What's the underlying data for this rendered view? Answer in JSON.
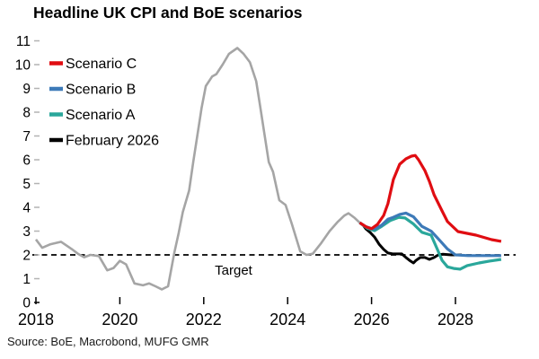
{
  "title": "Headline UK CPI and BoE scenarios",
  "source": "Source: BoE, Macrobond, MUFG GMR",
  "target_label": "Target",
  "colors": {
    "history": "#a5a5a5",
    "scenario_c": "#e00d12",
    "scenario_b": "#3d7ab8",
    "scenario_a": "#2aa79b",
    "february_2026": "#000000",
    "target_line": "#000000",
    "tick_minor": "#b3b3b3",
    "tick_major": "#000000"
  },
  "chart_data": {
    "type": "line",
    "title": "Headline UK CPI and BoE scenarios",
    "xlabel": "",
    "ylabel": "",
    "xlim": [
      2017.9,
      2029.45
    ],
    "ylim": [
      0,
      11
    ],
    "x_ticks": [
      2018,
      2020,
      2022,
      2024,
      2026,
      2028
    ],
    "y_ticks": [
      0,
      1,
      2,
      3,
      4,
      5,
      6,
      7,
      8,
      9,
      10,
      11
    ],
    "grid": false,
    "legend_position": "top-left",
    "target_line": {
      "value": 2,
      "style": "dashed",
      "label": "Target"
    },
    "legend_items": [
      {
        "label": "Scenario C",
        "color": "#e00d12"
      },
      {
        "label": "Scenario B",
        "color": "#3d7ab8"
      },
      {
        "label": "Scenario A",
        "color": "#2aa79b"
      },
      {
        "label": "February 2026",
        "color": "#000000"
      }
    ],
    "series": [
      {
        "name": "Headline CPI history",
        "color": "#a5a5a5",
        "width": 2.6,
        "points": [
          [
            2018.0,
            2.65
          ],
          [
            2018.15,
            2.3
          ],
          [
            2018.35,
            2.45
          ],
          [
            2018.6,
            2.55
          ],
          [
            2018.85,
            2.25
          ],
          [
            2019.0,
            2.05
          ],
          [
            2019.15,
            1.9
          ],
          [
            2019.3,
            2.0
          ],
          [
            2019.5,
            1.95
          ],
          [
            2019.7,
            1.35
          ],
          [
            2019.85,
            1.45
          ],
          [
            2020.0,
            1.75
          ],
          [
            2020.15,
            1.6
          ],
          [
            2020.35,
            0.8
          ],
          [
            2020.55,
            0.72
          ],
          [
            2020.7,
            0.8
          ],
          [
            2020.85,
            0.68
          ],
          [
            2021.0,
            0.55
          ],
          [
            2021.15,
            0.68
          ],
          [
            2021.3,
            2.1
          ],
          [
            2021.4,
            2.9
          ],
          [
            2021.5,
            3.8
          ],
          [
            2021.65,
            4.7
          ],
          [
            2021.75,
            5.9
          ],
          [
            2021.85,
            7.05
          ],
          [
            2021.95,
            8.2
          ],
          [
            2022.05,
            9.1
          ],
          [
            2022.2,
            9.5
          ],
          [
            2022.3,
            9.6
          ],
          [
            2022.45,
            10.0
          ],
          [
            2022.6,
            10.45
          ],
          [
            2022.8,
            10.7
          ],
          [
            2022.95,
            10.45
          ],
          [
            2023.1,
            10.1
          ],
          [
            2023.25,
            9.3
          ],
          [
            2023.35,
            8.2
          ],
          [
            2023.45,
            7.05
          ],
          [
            2023.55,
            5.9
          ],
          [
            2023.65,
            5.5
          ],
          [
            2023.8,
            4.3
          ],
          [
            2023.95,
            4.1
          ],
          [
            2024.1,
            3.3
          ],
          [
            2024.3,
            2.15
          ],
          [
            2024.45,
            2.0
          ],
          [
            2024.6,
            2.05
          ],
          [
            2024.8,
            2.5
          ],
          [
            2025.0,
            3.0
          ],
          [
            2025.2,
            3.4
          ],
          [
            2025.35,
            3.65
          ],
          [
            2025.45,
            3.75
          ],
          [
            2025.6,
            3.55
          ],
          [
            2025.72,
            3.35
          ]
        ]
      },
      {
        "name": "February 2026",
        "color": "#000000",
        "width": 3,
        "points": [
          [
            2025.72,
            3.35
          ],
          [
            2025.8,
            3.25
          ],
          [
            2025.86,
            3.1
          ],
          [
            2025.97,
            2.94
          ],
          [
            2026.07,
            2.75
          ],
          [
            2026.18,
            2.45
          ],
          [
            2026.29,
            2.23
          ],
          [
            2026.39,
            2.08
          ],
          [
            2026.5,
            2.04
          ],
          [
            2026.61,
            2.04
          ],
          [
            2026.72,
            2.04
          ],
          [
            2026.82,
            1.89
          ],
          [
            2026.93,
            1.74
          ],
          [
            2027.0,
            1.66
          ],
          [
            2027.06,
            1.77
          ],
          [
            2027.16,
            1.89
          ],
          [
            2027.27,
            1.89
          ],
          [
            2027.38,
            1.81
          ],
          [
            2027.49,
            1.89
          ],
          [
            2027.59,
            2.0
          ],
          [
            2027.7,
            2.03
          ],
          [
            2027.9,
            2.0
          ],
          [
            2028.15,
            2.0
          ]
        ]
      },
      {
        "name": "Scenario A",
        "color": "#2aa79b",
        "width": 3.2,
        "points": [
          [
            2025.72,
            3.35
          ],
          [
            2025.9,
            3.12
          ],
          [
            2026.07,
            3.02
          ],
          [
            2026.24,
            3.2
          ],
          [
            2026.45,
            3.45
          ],
          [
            2026.65,
            3.58
          ],
          [
            2026.8,
            3.55
          ],
          [
            2027.0,
            3.3
          ],
          [
            2027.2,
            2.95
          ],
          [
            2027.42,
            2.83
          ],
          [
            2027.57,
            2.23
          ],
          [
            2027.68,
            1.77
          ],
          [
            2027.81,
            1.5
          ],
          [
            2027.96,
            1.43
          ],
          [
            2028.11,
            1.4
          ],
          [
            2028.28,
            1.55
          ],
          [
            2028.56,
            1.66
          ],
          [
            2028.81,
            1.74
          ],
          [
            2029.09,
            1.81
          ]
        ]
      },
      {
        "name": "Scenario B",
        "color": "#3d7ab8",
        "width": 3.2,
        "points": [
          [
            2025.72,
            3.35
          ],
          [
            2025.85,
            3.2
          ],
          [
            2025.97,
            3.12
          ],
          [
            2026.07,
            3.09
          ],
          [
            2026.24,
            3.25
          ],
          [
            2026.39,
            3.5
          ],
          [
            2026.52,
            3.58
          ],
          [
            2026.67,
            3.7
          ],
          [
            2026.82,
            3.76
          ],
          [
            2027.0,
            3.6
          ],
          [
            2027.2,
            3.2
          ],
          [
            2027.42,
            3.0
          ],
          [
            2027.63,
            2.6
          ],
          [
            2027.81,
            2.25
          ],
          [
            2028.0,
            2.0
          ],
          [
            2028.3,
            1.97
          ],
          [
            2029.09,
            1.97
          ]
        ]
      },
      {
        "name": "Scenario C",
        "color": "#e00d12",
        "width": 3.2,
        "points": [
          [
            2025.72,
            3.35
          ],
          [
            2025.88,
            3.17
          ],
          [
            2026.0,
            3.1
          ],
          [
            2026.14,
            3.28
          ],
          [
            2026.29,
            3.66
          ],
          [
            2026.39,
            4.15
          ],
          [
            2026.52,
            5.17
          ],
          [
            2026.67,
            5.81
          ],
          [
            2026.82,
            6.04
          ],
          [
            2026.95,
            6.15
          ],
          [
            2027.04,
            6.18
          ],
          [
            2027.12,
            6.0
          ],
          [
            2027.27,
            5.55
          ],
          [
            2027.38,
            5.09
          ],
          [
            2027.49,
            4.53
          ],
          [
            2027.68,
            3.85
          ],
          [
            2027.81,
            3.4
          ],
          [
            2028.06,
            2.98
          ],
          [
            2028.49,
            2.83
          ],
          [
            2028.86,
            2.64
          ],
          [
            2029.09,
            2.57
          ]
        ]
      }
    ]
  }
}
